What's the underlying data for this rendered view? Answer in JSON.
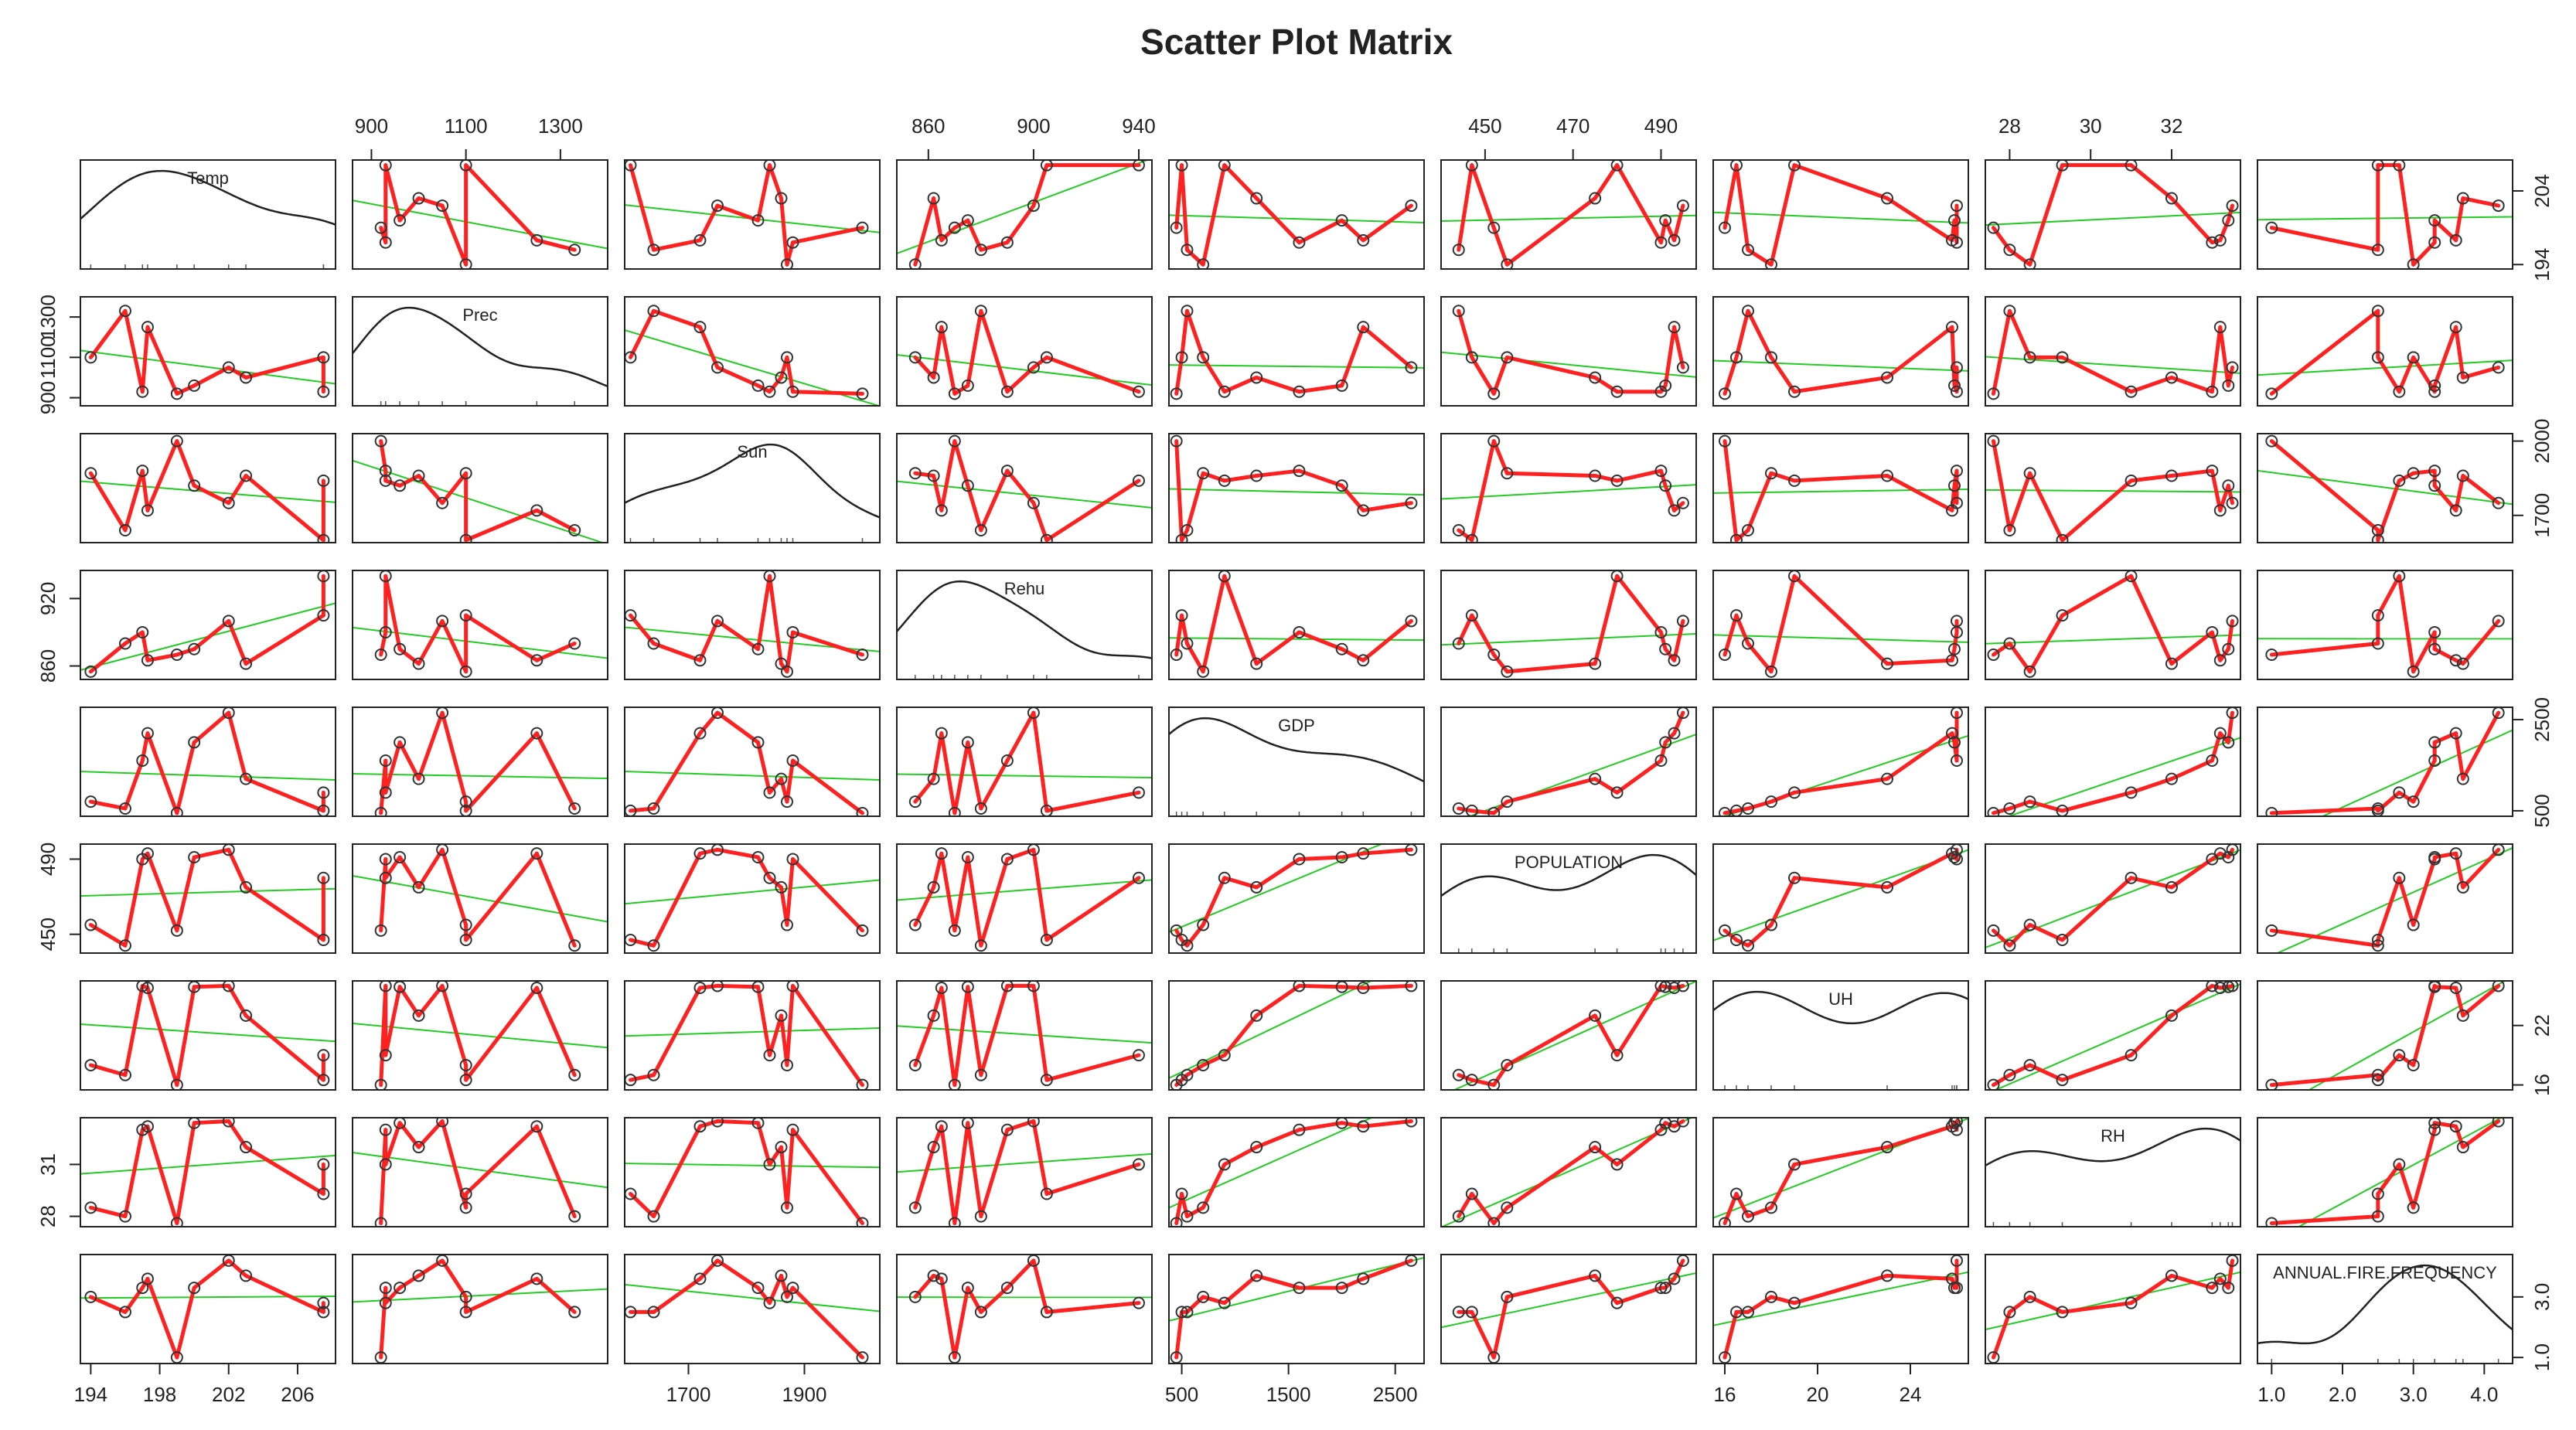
{
  "chart_data": {
    "type": "scatter-matrix",
    "title": "Scatter Plot Matrix",
    "point_color": "#333333",
    "line_color": "#ff2020",
    "fit_color": "#22cc22",
    "density_color": "#222222",
    "variables": [
      {
        "name": "Temp",
        "values": [
          194,
          196,
          197,
          197.3,
          199,
          200,
          203,
          207.5,
          207.5,
          202
        ],
        "lim": [
          193.4,
          208.2
        ],
        "xticks": [
          194,
          198,
          202,
          206
        ],
        "yticks": [
          194,
          204
        ]
      },
      {
        "name": "Prec",
        "values": [
          1100,
          1330,
          930,
          1250,
          920,
          960,
          1000,
          1100,
          930,
          1050
        ],
        "lim": [
          860,
          1400
        ],
        "xticks": [
          900,
          1100,
          1300
        ],
        "yticks": [
          900,
          1100,
          1300
        ]
      },
      {
        "name": "Sun",
        "values": [
          1870,
          1640,
          1880,
          1720,
          2000,
          1820,
          1860,
          1600,
          1840,
          1750
        ],
        "lim": [
          1590,
          2030
        ],
        "xticks": [
          1700,
          1900
        ],
        "yticks": [
          1700,
          2000
        ]
      },
      {
        "name": "Rehu",
        "values": [
          855,
          880,
          890,
          865,
          870,
          875,
          862,
          905,
          940,
          900
        ],
        "lim": [
          848,
          945
        ],
        "xticks": [
          860,
          900,
          940
        ],
        "yticks": [
          860,
          920
        ]
      },
      {
        "name": "GDP",
        "values": [
          700,
          550,
          1600,
          2200,
          450,
          2000,
          1200,
          500,
          900,
          2650
        ],
        "lim": [
          380,
          2770
        ],
        "xticks": [
          500,
          1500,
          2500
        ],
        "yticks": [
          500,
          2500
        ]
      },
      {
        "name": "POPULATION",
        "values": [
          455,
          444,
          490,
          493,
          452,
          491,
          475,
          447,
          480,
          495
        ],
        "lim": [
          440,
          498
        ],
        "xticks": [
          450,
          470,
          490
        ],
        "yticks": [
          450,
          490
        ]
      },
      {
        "name": "UH",
        "values": [
          18.0,
          17.0,
          26.0,
          25.8,
          16.0,
          25.9,
          23.0,
          16.5,
          19.0,
          26.0
        ],
        "lim": [
          15.5,
          26.5
        ],
        "xticks": [
          16,
          20,
          24
        ],
        "yticks": [
          16,
          22
        ]
      },
      {
        "name": "RH",
        "values": [
          28.5,
          28.0,
          33.0,
          33.2,
          27.6,
          33.4,
          32.0,
          29.3,
          31.0,
          33.5
        ],
        "lim": [
          27.4,
          33.7
        ],
        "xticks": [
          28,
          30,
          32
        ],
        "yticks": [
          28,
          31
        ]
      },
      {
        "name": "ANNUAL.FIRE.FREQUENCY",
        "values": [
          3.0,
          2.5,
          3.3,
          3.6,
          1.0,
          3.3,
          3.7,
          2.5,
          2.8,
          4.2
        ],
        "lim": [
          0.8,
          4.4
        ],
        "xticks": [
          {
            "value": 1,
            "label": "1.0"
          },
          {
            "value": 2,
            "label": "2.0"
          },
          {
            "value": 3,
            "label": "3.0"
          },
          {
            "value": 4,
            "label": "4.0"
          }
        ],
        "yticks": [
          {
            "value": 1,
            "label": "1.0"
          },
          {
            "value": 3,
            "label": "3.0"
          }
        ]
      }
    ]
  }
}
